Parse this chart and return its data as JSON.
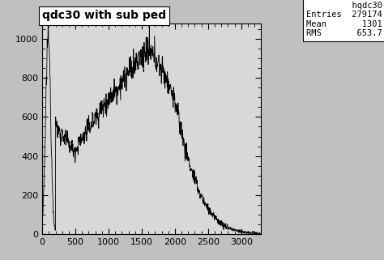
{
  "title": "qdc30 with sub ped",
  "legend_title": "hqdc30",
  "entries": "279174",
  "mean": "1301",
  "rms": "653.7",
  "xlim": [
    0,
    3300
  ],
  "ylim": [
    0,
    1080
  ],
  "xticks": [
    0,
    500,
    1000,
    1500,
    2000,
    2500,
    3000
  ],
  "yticks": [
    0,
    200,
    400,
    600,
    800,
    1000
  ],
  "bg_color": "#c0c0c0",
  "plot_bg_color": "#d8d8d8",
  "line_color": "#000000",
  "seed": 12345,
  "n_points": 800,
  "title_fontsize": 10,
  "tick_labelsize": 8,
  "stats_fontsize": 7.5
}
